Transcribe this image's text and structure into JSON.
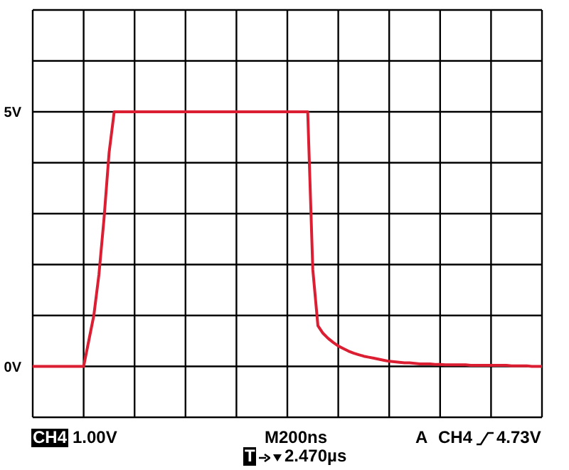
{
  "chart_data": {
    "type": "line",
    "categories": [
      null,
      null,
      null,
      null,
      null,
      null,
      null,
      null,
      null,
      null,
      null,
      null,
      null,
      null,
      null,
      null,
      null,
      null,
      null,
      null,
      null,
      null,
      null,
      null,
      null,
      null,
      null,
      null,
      null,
      null,
      null,
      null,
      null,
      null,
      null,
      null,
      null,
      null,
      null,
      null,
      null,
      null,
      null,
      null,
      null,
      null,
      null,
      null,
      null,
      null,
      null,
      null,
      null,
      null,
      null,
      null,
      null,
      null,
      null,
      null,
      null,
      null,
      null,
      null,
      null,
      null,
      null,
      null,
      null,
      null,
      null,
      null,
      null,
      null,
      null,
      null,
      null,
      null,
      null,
      null,
      null,
      null,
      null,
      null,
      null,
      null,
      null,
      null,
      null,
      null,
      null,
      null,
      null,
      null,
      null,
      null,
      null,
      null,
      null,
      null,
      null
    ],
    "series": [
      {
        "color": "#dc1e32",
        "values": [
          0,
          0,
          0,
          0,
          0,
          0,
          0,
          0,
          0,
          0,
          0,
          0.5,
          1.0,
          1.8,
          2.9,
          4.2,
          5.0,
          5.0,
          5.0,
          5.0,
          5.0,
          5.0,
          5.0,
          5.0,
          5.0,
          5.0,
          5.0,
          5.0,
          5.0,
          5.0,
          5.0,
          5.0,
          5.0,
          5.0,
          5.0,
          5.0,
          5.0,
          5.0,
          5.0,
          5.0,
          5.0,
          5.0,
          5.0,
          5.0,
          5.0,
          5.0,
          5.0,
          5.0,
          5.0,
          5.0,
          5.0,
          5.0,
          5.0,
          5.0,
          5.0,
          1.9,
          0.8,
          0.65,
          0.55,
          0.47,
          0.4,
          0.35,
          0.3,
          0.26,
          0.23,
          0.2,
          0.18,
          0.16,
          0.14,
          0.12,
          0.1,
          0.09,
          0.08,
          0.07,
          0.07,
          0.06,
          0.05,
          0.05,
          0.05,
          0.04,
          0.04,
          0.03,
          0.03,
          0.03,
          0.03,
          0.03,
          0.02,
          0.02,
          0.02,
          0.02,
          0.02,
          0.02,
          0.02,
          0.02,
          0.01,
          0.01,
          0.01,
          0.01,
          0,
          0,
          0
        ]
      }
    ],
    "ylim": [
      -1,
      7
    ],
    "yticks": [
      {
        "value": -1,
        "label": null
      },
      {
        "value": 0,
        "label": "0V"
      },
      {
        "value": 1,
        "label": null
      },
      {
        "value": 2,
        "label": null
      },
      {
        "value": 3,
        "label": null
      },
      {
        "value": 4,
        "label": null
      },
      {
        "value": 5,
        "label": "5V"
      },
      {
        "value": 6,
        "label": null
      },
      {
        "value": 7,
        "label": null
      }
    ],
    "tick_labels": "y",
    "grid": true,
    "marker": "none",
    "line_style": "solid",
    "annotations": [
      "CH4",
      "1.00V",
      "M200ns",
      "A",
      "CH4",
      "4.73V",
      "T",
      "2.470µs"
    ]
  }
}
